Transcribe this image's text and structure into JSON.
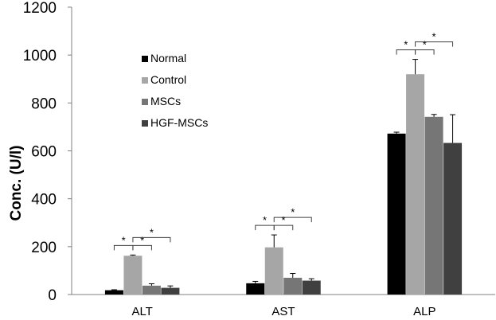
{
  "chart_data": {
    "type": "bar",
    "title": "",
    "xlabel": "",
    "ylabel": "Conc. (U/l)",
    "ylim": [
      0,
      1200
    ],
    "yticks": [
      0,
      200,
      400,
      600,
      800,
      1000,
      1200
    ],
    "categories": [
      "ALT",
      "AST",
      "ALP"
    ],
    "grid": false,
    "legend_position": "upper-left-inside",
    "significance_marker": "*",
    "series": [
      {
        "name": "Normal",
        "color": "#000000",
        "values": [
          18,
          47,
          672
        ],
        "errors": [
          2,
          8,
          6
        ]
      },
      {
        "name": "Control",
        "color": "#a6a6a6",
        "values": [
          162,
          197,
          920
        ],
        "errors": [
          3,
          52,
          62
        ]
      },
      {
        "name": "MSCs",
        "color": "#767676",
        "values": [
          37,
          70,
          742
        ],
        "errors": [
          8,
          18,
          10
        ]
      },
      {
        "name": "HGF-MSCs",
        "color": "#404040",
        "values": [
          28,
          58,
          633
        ],
        "errors": [
          8,
          8,
          118
        ]
      }
    ],
    "significance": [
      {
        "category": 0,
        "from": 0,
        "to": 1,
        "level": 1
      },
      {
        "category": 0,
        "from": 1,
        "to": 2,
        "level": 1
      },
      {
        "category": 0,
        "from": 1,
        "to": 3,
        "level": 2
      },
      {
        "category": 1,
        "from": 0,
        "to": 1,
        "level": 1
      },
      {
        "category": 1,
        "from": 1,
        "to": 2,
        "level": 1
      },
      {
        "category": 1,
        "from": 1,
        "to": 3,
        "level": 2
      },
      {
        "category": 2,
        "from": 0,
        "to": 1,
        "level": 1
      },
      {
        "category": 2,
        "from": 1,
        "to": 2,
        "level": 1
      },
      {
        "category": 2,
        "from": 1,
        "to": 3,
        "level": 2
      }
    ]
  }
}
